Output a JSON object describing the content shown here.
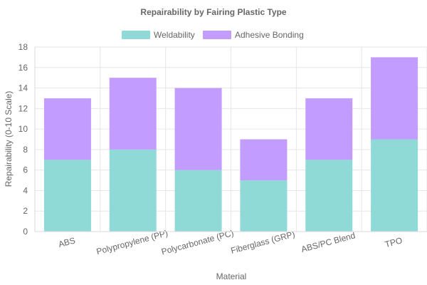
{
  "chart_data": {
    "type": "bar",
    "stacked": true,
    "title": "Repairability by Fairing Plastic Type",
    "xlabel": "Material",
    "ylabel": "Repairability (0-10 Scale)",
    "categories": [
      "ABS",
      "Polypropylene (PP)",
      "Polycarbonate (PC)",
      "Fiberglass (GRP)",
      "ABS/PC Blend",
      "TPO"
    ],
    "series": [
      {
        "name": "Weldability",
        "values": [
          7,
          8,
          6,
          5,
          7,
          9
        ],
        "color": "#8fd9d6"
      },
      {
        "name": "Adhesive Bonding",
        "values": [
          6,
          7,
          8,
          4,
          6,
          8
        ],
        "color": "#c39cff"
      }
    ],
    "ylim": [
      0,
      18
    ],
    "yticks": [
      0,
      2,
      4,
      6,
      8,
      10,
      12,
      14,
      16,
      18
    ],
    "grid": true,
    "legend_position": "top-center"
  }
}
